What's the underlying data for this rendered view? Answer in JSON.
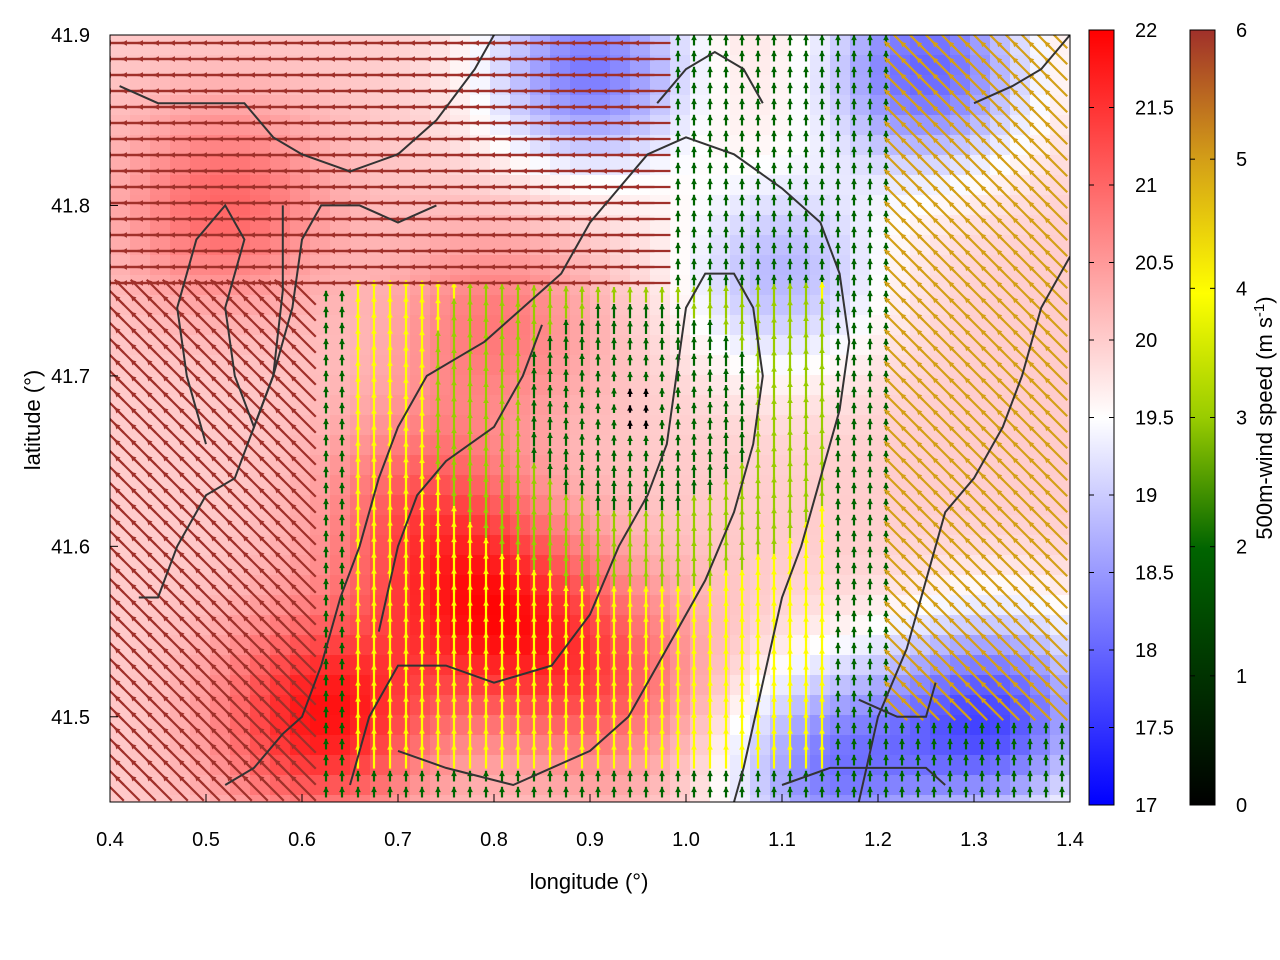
{
  "chart_data": {
    "type": "heatmap",
    "title": "",
    "xlabel": "longitude (°)",
    "ylabel": "latitude (°)",
    "xlim": [
      0.4,
      1.4
    ],
    "ylim": [
      41.45,
      41.9
    ],
    "x_ticks": [
      "0.4",
      "0.5",
      "0.6",
      "0.7",
      "0.8",
      "0.9",
      "1.0",
      "1.1",
      "1.2",
      "1.3",
      "1.4"
    ],
    "y_ticks": [
      "41.5",
      "41.6",
      "41.7",
      "41.8",
      "41.9"
    ],
    "grid": false,
    "background_field": {
      "colorbar_range": [
        17,
        22
      ],
      "colorbar_ticks": [
        "17",
        "17.5",
        "18",
        "18.5",
        "19",
        "19.5",
        "20",
        "20.5",
        "21",
        "21.5",
        "22"
      ],
      "palette": [
        "#0000ff",
        "#ffffff",
        "#ff0000"
      ],
      "warm_spots": [
        {
          "lon": 0.8,
          "lat": 41.56,
          "value": 21.5
        },
        {
          "lon": 0.62,
          "lat": 41.5,
          "value": 21.8
        },
        {
          "lon": 0.72,
          "lat": 41.62,
          "value": 21.0
        },
        {
          "lon": 0.92,
          "lat": 41.52,
          "value": 21.0
        },
        {
          "lon": 0.52,
          "lat": 41.8,
          "value": 21.0
        },
        {
          "lon": 0.8,
          "lat": 41.73,
          "value": 20.8
        }
      ],
      "cool_spots": [
        {
          "lon": 0.9,
          "lat": 41.88,
          "value": 18.2
        },
        {
          "lon": 1.25,
          "lat": 41.88,
          "value": 18.0
        },
        {
          "lon": 1.32,
          "lat": 41.5,
          "value": 17.8
        },
        {
          "lon": 1.15,
          "lat": 41.47,
          "value": 18.3
        },
        {
          "lon": 1.1,
          "lat": 41.76,
          "value": 18.8
        }
      ]
    },
    "vector_field": {
      "quantity": "500m-wind speed",
      "colorbar_label": "500m-wind speed (m s",
      "colorbar_label_sup": "-1",
      "colorbar_label_end": ")",
      "colorbar_range": [
        0,
        6
      ],
      "colorbar_ticks": [
        "0",
        "1",
        "2",
        "3",
        "4",
        "5",
        "6"
      ],
      "palette": [
        "#000000",
        "#006400",
        "#99cc00",
        "#ffff00",
        "#d4a017",
        "#a0302a"
      ],
      "calm_center": {
        "lon": 0.95,
        "lat": 41.68
      },
      "regions": [
        {
          "name": "north",
          "lon_range": [
            0.4,
            0.98
          ],
          "lat_range": [
            41.75,
            41.9
          ],
          "direction": "west",
          "speed": 5.8
        },
        {
          "name": "west",
          "lon_range": [
            0.4,
            0.62
          ],
          "lat_range": [
            41.45,
            41.75
          ],
          "direction": "north-west",
          "speed": 5.6
        },
        {
          "name": "east",
          "lon_range": [
            1.22,
            1.4
          ],
          "lat_range": [
            41.5,
            41.9
          ],
          "direction": "north-west",
          "speed": 5.0
        },
        {
          "name": "center",
          "lon_range": [
            0.65,
            1.15
          ],
          "lat_range": [
            41.47,
            41.75
          ],
          "direction": "north",
          "speed": 1.5
        }
      ]
    },
    "coastline_contours": [
      [
        [
          0.41,
          41.87
        ],
        [
          0.45,
          41.86
        ],
        [
          0.5,
          41.86
        ],
        [
          0.54,
          41.86
        ],
        [
          0.57,
          41.84
        ],
        [
          0.6,
          41.83
        ],
        [
          0.65,
          41.82
        ],
        [
          0.7,
          41.83
        ],
        [
          0.74,
          41.85
        ],
        [
          0.78,
          41.88
        ],
        [
          0.8,
          41.9
        ]
      ],
      [
        [
          0.5,
          41.66
        ],
        [
          0.48,
          41.7
        ],
        [
          0.47,
          41.74
        ],
        [
          0.49,
          41.78
        ],
        [
          0.52,
          41.8
        ],
        [
          0.54,
          41.78
        ],
        [
          0.52,
          41.74
        ],
        [
          0.53,
          41.7
        ],
        [
          0.55,
          41.67
        ],
        [
          0.57,
          41.7
        ],
        [
          0.58,
          41.75
        ],
        [
          0.58,
          41.8
        ]
      ],
      [
        [
          0.43,
          41.57
        ],
        [
          0.45,
          41.57
        ],
        [
          0.47,
          41.6
        ],
        [
          0.5,
          41.63
        ],
        [
          0.53,
          41.64
        ],
        [
          0.55,
          41.67
        ],
        [
          0.57,
          41.7
        ],
        [
          0.59,
          41.74
        ],
        [
          0.6,
          41.78
        ],
        [
          0.62,
          41.8
        ],
        [
          0.66,
          41.8
        ],
        [
          0.7,
          41.79
        ],
        [
          0.74,
          41.8
        ]
      ],
      [
        [
          0.52,
          41.46
        ],
        [
          0.55,
          41.47
        ],
        [
          0.58,
          41.49
        ],
        [
          0.6,
          41.5
        ],
        [
          0.62,
          41.53
        ],
        [
          0.64,
          41.57
        ],
        [
          0.66,
          41.6
        ],
        [
          0.68,
          41.64
        ],
        [
          0.7,
          41.67
        ],
        [
          0.73,
          41.7
        ],
        [
          0.76,
          41.71
        ],
        [
          0.79,
          41.72
        ],
        [
          0.83,
          41.74
        ],
        [
          0.87,
          41.76
        ],
        [
          0.9,
          41.79
        ],
        [
          0.93,
          41.81
        ],
        [
          0.96,
          41.83
        ],
        [
          1.0,
          41.84
        ],
        [
          1.05,
          41.83
        ],
        [
          1.1,
          41.81
        ],
        [
          1.14,
          41.79
        ],
        [
          1.16,
          41.76
        ],
        [
          1.17,
          41.72
        ],
        [
          1.16,
          41.68
        ],
        [
          1.14,
          41.64
        ],
        [
          1.12,
          41.6
        ],
        [
          1.1,
          41.57
        ],
        [
          1.08,
          41.52
        ],
        [
          1.06,
          41.47
        ],
        [
          1.05,
          41.45
        ]
      ],
      [
        [
          0.65,
          41.46
        ],
        [
          0.67,
          41.5
        ],
        [
          0.7,
          41.53
        ],
        [
          0.75,
          41.53
        ],
        [
          0.8,
          41.52
        ],
        [
          0.86,
          41.53
        ],
        [
          0.9,
          41.56
        ],
        [
          0.93,
          41.6
        ],
        [
          0.96,
          41.63
        ],
        [
          0.98,
          41.66
        ],
        [
          0.99,
          41.7
        ],
        [
          1.0,
          41.74
        ],
        [
          1.02,
          41.76
        ],
        [
          1.05,
          41.76
        ],
        [
          1.07,
          41.74
        ],
        [
          1.08,
          41.7
        ],
        [
          1.07,
          41.66
        ],
        [
          1.05,
          41.62
        ],
        [
          1.02,
          41.58
        ],
        [
          0.99,
          41.55
        ],
        [
          0.96,
          41.52
        ],
        [
          0.94,
          41.5
        ],
        [
          0.9,
          41.48
        ],
        [
          0.86,
          41.47
        ],
        [
          0.82,
          41.46
        ],
        [
          0.75,
          41.47
        ],
        [
          0.7,
          41.48
        ]
      ],
      [
        [
          0.68,
          41.55
        ],
        [
          0.7,
          41.6
        ],
        [
          0.72,
          41.63
        ],
        [
          0.75,
          41.65
        ],
        [
          0.8,
          41.67
        ],
        [
          0.83,
          41.7
        ],
        [
          0.85,
          41.73
        ]
      ],
      [
        [
          1.18,
          41.45
        ],
        [
          1.2,
          41.5
        ],
        [
          1.23,
          41.54
        ],
        [
          1.25,
          41.58
        ],
        [
          1.27,
          41.62
        ],
        [
          1.3,
          41.64
        ],
        [
          1.33,
          41.67
        ],
        [
          1.35,
          41.7
        ],
        [
          1.37,
          41.74
        ],
        [
          1.4,
          41.77
        ]
      ],
      [
        [
          1.1,
          41.46
        ],
        [
          1.15,
          41.47
        ],
        [
          1.2,
          41.47
        ],
        [
          1.25,
          41.47
        ],
        [
          1.27,
          41.46
        ]
      ],
      [
        [
          1.18,
          41.51
        ],
        [
          1.22,
          41.5
        ],
        [
          1.25,
          41.5
        ],
        [
          1.26,
          41.52
        ]
      ],
      [
        [
          0.97,
          41.86
        ],
        [
          1.0,
          41.88
        ],
        [
          1.03,
          41.89
        ],
        [
          1.06,
          41.88
        ],
        [
          1.08,
          41.86
        ]
      ],
      [
        [
          1.3,
          41.86
        ],
        [
          1.34,
          41.87
        ],
        [
          1.37,
          41.88
        ],
        [
          1.4,
          41.9
        ]
      ]
    ]
  }
}
